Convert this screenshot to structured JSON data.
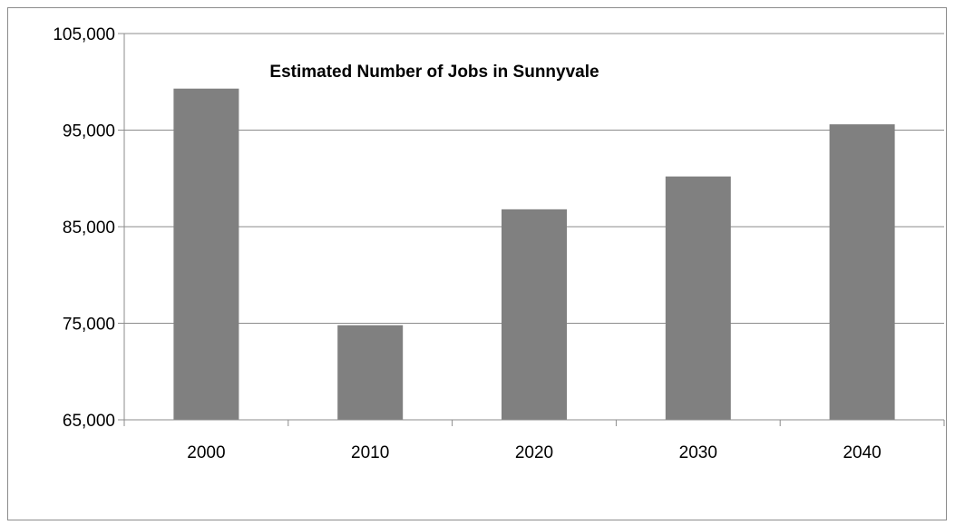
{
  "chart_data": {
    "type": "bar",
    "title": "Estimated Number of Jobs in Sunnyvale",
    "xlabel": "",
    "ylabel": "",
    "categories": [
      "2000",
      "2010",
      "2020",
      "2030",
      "2040"
    ],
    "values": [
      99300,
      74800,
      86800,
      90200,
      95600
    ],
    "ylim": [
      65000,
      105000
    ],
    "yticks": [
      65000,
      75000,
      85000,
      95000,
      105000
    ],
    "ytick_labels": [
      "65,000",
      "75,000",
      "85,000",
      "95,000",
      "105,000"
    ],
    "grid": true,
    "legend": "none",
    "colors": {
      "bar": "#808080",
      "grid": "#8c8c8c",
      "axis": "#8c8c8c",
      "border": "#8c8c8c"
    }
  }
}
